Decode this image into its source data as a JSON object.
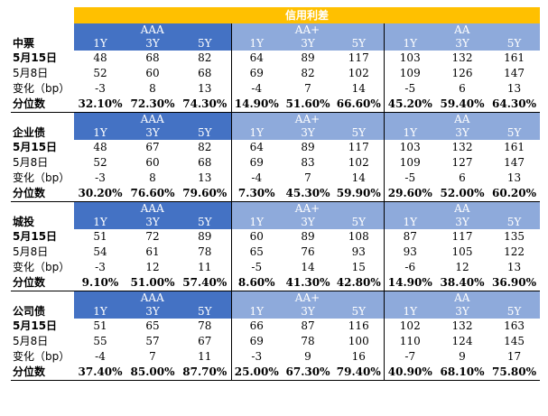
{
  "title": "信用利差",
  "groups": [
    "AAA",
    "AA+",
    "AA"
  ],
  "tenors": [
    "1Y",
    "3Y",
    "5Y"
  ],
  "row_labels": {
    "d1": "5月15日",
    "d2": "5月8日",
    "chg": "变化（bp）",
    "pct": "分位数"
  },
  "sections": [
    {
      "name": "中票",
      "d1": [
        "48",
        "68",
        "82",
        "64",
        "89",
        "117",
        "103",
        "132",
        "161"
      ],
      "d2": [
        "52",
        "60",
        "68",
        "69",
        "82",
        "102",
        "109",
        "126",
        "147"
      ],
      "chg": [
        "-3",
        "8",
        "13",
        "-4",
        "7",
        "14",
        "-5",
        "6",
        "13"
      ],
      "pct": [
        "32.10%",
        "72.30%",
        "74.30%",
        "14.90%",
        "51.60%",
        "66.60%",
        "45.20%",
        "59.40%",
        "64.30%"
      ]
    },
    {
      "name": "企业债",
      "d1": [
        "48",
        "67",
        "82",
        "64",
        "89",
        "117",
        "103",
        "132",
        "161"
      ],
      "d2": [
        "52",
        "60",
        "68",
        "69",
        "83",
        "102",
        "109",
        "127",
        "147"
      ],
      "chg": [
        "-3",
        "8",
        "13",
        "-4",
        "7",
        "14",
        "-5",
        "6",
        "13"
      ],
      "pct": [
        "30.20%",
        "76.60%",
        "79.60%",
        "7.30%",
        "45.30%",
        "59.90%",
        "29.60%",
        "52.00%",
        "60.20%"
      ]
    },
    {
      "name": "城投",
      "d1": [
        "51",
        "72",
        "89",
        "60",
        "89",
        "108",
        "87",
        "117",
        "135"
      ],
      "d2": [
        "54",
        "61",
        "78",
        "65",
        "76",
        "93",
        "93",
        "105",
        "122"
      ],
      "chg": [
        "-3",
        "12",
        "11",
        "-5",
        "14",
        "15",
        "-6",
        "12",
        "13"
      ],
      "pct": [
        "9.10%",
        "51.00%",
        "57.40%",
        "8.60%",
        "41.30%",
        "42.80%",
        "14.90%",
        "38.40%",
        "36.90%"
      ]
    },
    {
      "name": "公司债",
      "d1": [
        "51",
        "65",
        "78",
        "66",
        "87",
        "116",
        "102",
        "132",
        "163"
      ],
      "d2": [
        "55",
        "57",
        "67",
        "69",
        "78",
        "100",
        "110",
        "124",
        "145"
      ],
      "chg": [
        "-4",
        "7",
        "11",
        "-3",
        "9",
        "16",
        "-7",
        "9",
        "17"
      ],
      "pct": [
        "37.40%",
        "85.00%",
        "87.70%",
        "25.00%",
        "67.30%",
        "79.40%",
        "40.90%",
        "68.10%",
        "75.80%"
      ]
    }
  ]
}
